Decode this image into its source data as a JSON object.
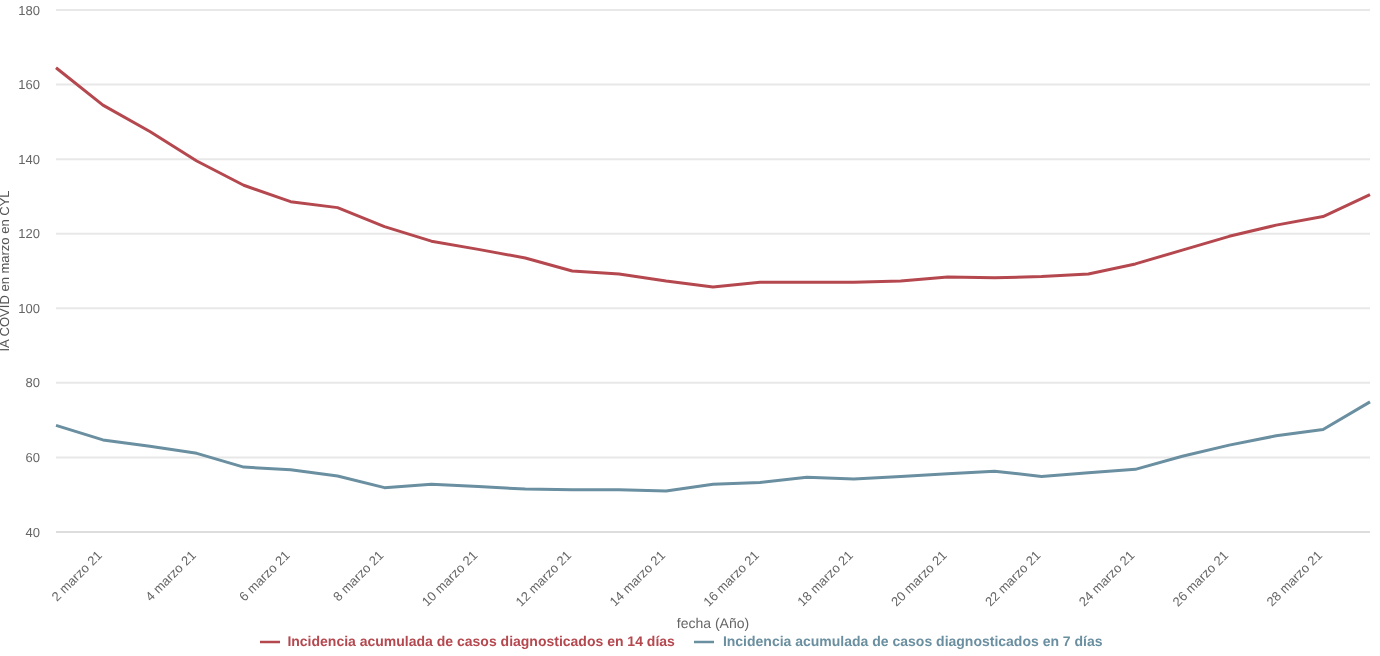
{
  "chart_data": {
    "type": "line",
    "xlabel": "fecha (Año)",
    "ylabel": "IA COVID en marzo en CYL",
    "categories": [
      null,
      "2 marzo 21",
      null,
      "4 marzo 21",
      null,
      "6 marzo 21",
      null,
      "8 marzo 21",
      null,
      "10 marzo 21",
      null,
      "12 marzo 21",
      null,
      "14 marzo 21",
      null,
      "16 marzo 21",
      null,
      "18 marzo 21",
      null,
      "20 marzo 21",
      null,
      "22 marzo 21",
      null,
      "24 marzo 21",
      null,
      "26 marzo 21",
      null,
      "28 marzo 21",
      null
    ],
    "series": [
      {
        "name": "Incidencia acumulada de casos diagnosticados en 14 días",
        "color": "#b5484f",
        "values": [
          164.5,
          154.5,
          147.4,
          139.5,
          133,
          128.6,
          127,
          121.9,
          118,
          115.8,
          113.5,
          110,
          109.2,
          107.3,
          105.7,
          107,
          107,
          107,
          107.3,
          108.4,
          108.2,
          108.5,
          109.2,
          111.9,
          115.6,
          119.3,
          122.3,
          124.6,
          130.5
        ]
      },
      {
        "name": "Incidencia acumulada de casos diagnosticados en 7 días",
        "color": "#6a8fa0",
        "values": [
          68.6,
          64.7,
          63,
          61.1,
          57.4,
          56.7,
          55,
          51.9,
          52.8,
          52.2,
          51.5,
          51.3,
          51.3,
          51,
          52.8,
          53.3,
          54.7,
          54.2,
          54.9,
          55.6,
          56.3,
          54.9,
          55.9,
          56.8,
          60.3,
          63.3,
          65.8,
          67.5,
          74.9
        ]
      }
    ],
    "ylim": [
      40,
      180
    ],
    "yticks": [
      40,
      60,
      80,
      100,
      120,
      140,
      160,
      180
    ],
    "grid": "y",
    "legend": "bottom",
    "marker": "none",
    "line_style": "solid"
  }
}
